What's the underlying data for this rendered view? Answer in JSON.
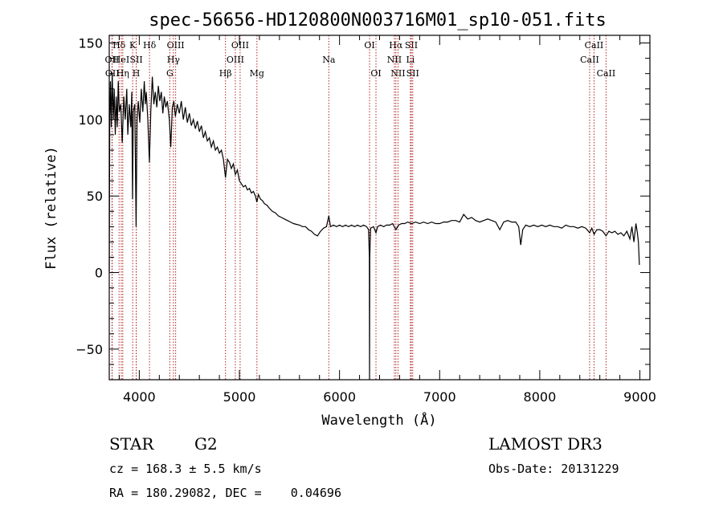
{
  "chart_data": {
    "type": "line",
    "title": "spec-56656-HD120800N003716M01_sp10-051.fits",
    "xlabel": "Wavelength (Å)",
    "ylabel": "Flux (relative)",
    "xlim": [
      3700,
      9100
    ],
    "ylim": [
      -70,
      155
    ],
    "xticks": [
      4000,
      5000,
      6000,
      7000,
      8000,
      9000
    ],
    "yticks": [
      -50,
      0,
      50,
      100,
      150
    ],
    "grid": false,
    "line_color": "#000000",
    "marker_color": "#b22222",
    "series": [
      {
        "values": [
          [
            3700,
            0
          ],
          [
            3705,
            100
          ],
          [
            3712,
            125
          ],
          [
            3720,
            95
          ],
          [
            3730,
            130
          ],
          [
            3740,
            100
          ],
          [
            3750,
            120
          ],
          [
            3760,
            90
          ],
          [
            3770,
            115
          ],
          [
            3780,
            95
          ],
          [
            3790,
            125
          ],
          [
            3800,
            105
          ],
          [
            3815,
            110
          ],
          [
            3830,
            85
          ],
          [
            3845,
            115
          ],
          [
            3860,
            100
          ],
          [
            3875,
            120
          ],
          [
            3885,
            90
          ],
          [
            3900,
            110
          ],
          [
            3915,
            95
          ],
          [
            3925,
            118
          ],
          [
            3933,
            48
          ],
          [
            3940,
            105
          ],
          [
            3955,
            110
          ],
          [
            3968,
            30
          ],
          [
            3978,
            100
          ],
          [
            3990,
            112
          ],
          [
            4005,
            98
          ],
          [
            4020,
            120
          ],
          [
            4035,
            105
          ],
          [
            4050,
            125
          ],
          [
            4060,
            110
          ],
          [
            4070,
            118
          ],
          [
            4085,
            100
          ],
          [
            4101,
            72
          ],
          [
            4115,
            105
          ],
          [
            4130,
            128
          ],
          [
            4145,
            110
          ],
          [
            4160,
            118
          ],
          [
            4175,
            108
          ],
          [
            4190,
            122
          ],
          [
            4205,
            112
          ],
          [
            4220,
            118
          ],
          [
            4235,
            104
          ],
          [
            4250,
            115
          ],
          [
            4265,
            108
          ],
          [
            4280,
            112
          ],
          [
            4300,
            100
          ],
          [
            4315,
            82
          ],
          [
            4330,
            108
          ],
          [
            4345,
            112
          ],
          [
            4360,
            102
          ],
          [
            4380,
            110
          ],
          [
            4400,
            104
          ],
          [
            4420,
            112
          ],
          [
            4440,
            100
          ],
          [
            4460,
            108
          ],
          [
            4480,
            98
          ],
          [
            4500,
            104
          ],
          [
            4520,
            96
          ],
          [
            4540,
            100
          ],
          [
            4560,
            94
          ],
          [
            4580,
            99
          ],
          [
            4600,
            92
          ],
          [
            4620,
            96
          ],
          [
            4640,
            88
          ],
          [
            4660,
            92
          ],
          [
            4680,
            86
          ],
          [
            4700,
            88
          ],
          [
            4720,
            82
          ],
          [
            4740,
            86
          ],
          [
            4760,
            80
          ],
          [
            4780,
            82
          ],
          [
            4800,
            78
          ],
          [
            4820,
            80
          ],
          [
            4840,
            74
          ],
          [
            4861,
            62
          ],
          [
            4880,
            74
          ],
          [
            4900,
            72
          ],
          [
            4920,
            68
          ],
          [
            4940,
            71
          ],
          [
            4960,
            64
          ],
          [
            4980,
            67
          ],
          [
            5000,
            60
          ],
          [
            5020,
            58
          ],
          [
            5040,
            56
          ],
          [
            5060,
            57
          ],
          [
            5080,
            54
          ],
          [
            5100,
            55
          ],
          [
            5120,
            52
          ],
          [
            5140,
            53
          ],
          [
            5160,
            50
          ],
          [
            5175,
            46
          ],
          [
            5190,
            51
          ],
          [
            5210,
            48
          ],
          [
            5230,
            47
          ],
          [
            5250,
            45
          ],
          [
            5275,
            44
          ],
          [
            5300,
            42
          ],
          [
            5330,
            40
          ],
          [
            5360,
            39
          ],
          [
            5390,
            37
          ],
          [
            5420,
            36
          ],
          [
            5450,
            35
          ],
          [
            5480,
            34
          ],
          [
            5510,
            33
          ],
          [
            5540,
            32
          ],
          [
            5570,
            31.5
          ],
          [
            5600,
            31
          ],
          [
            5630,
            30
          ],
          [
            5660,
            30
          ],
          [
            5690,
            28
          ],
          [
            5720,
            27
          ],
          [
            5750,
            25
          ],
          [
            5780,
            24
          ],
          [
            5810,
            27
          ],
          [
            5840,
            29
          ],
          [
            5870,
            30
          ],
          [
            5893,
            37
          ],
          [
            5910,
            30
          ],
          [
            5940,
            31
          ],
          [
            5970,
            30
          ],
          [
            6000,
            31
          ],
          [
            6030,
            30
          ],
          [
            6060,
            31
          ],
          [
            6090,
            30
          ],
          [
            6120,
            31
          ],
          [
            6150,
            30
          ],
          [
            6180,
            31
          ],
          [
            6210,
            30
          ],
          [
            6240,
            31
          ],
          [
            6270,
            30
          ],
          [
            6290,
            28
          ],
          [
            6298,
            10
          ],
          [
            6300,
            -70
          ],
          [
            6302,
            10
          ],
          [
            6310,
            29
          ],
          [
            6340,
            30
          ],
          [
            6364,
            26
          ],
          [
            6380,
            30
          ],
          [
            6410,
            31
          ],
          [
            6440,
            30
          ],
          [
            6470,
            31
          ],
          [
            6500,
            31
          ],
          [
            6530,
            32
          ],
          [
            6563,
            28
          ],
          [
            6590,
            31
          ],
          [
            6620,
            32
          ],
          [
            6650,
            32
          ],
          [
            6680,
            33
          ],
          [
            6720,
            32
          ],
          [
            6760,
            33
          ],
          [
            6800,
            32
          ],
          [
            6840,
            33
          ],
          [
            6880,
            32
          ],
          [
            6920,
            33
          ],
          [
            6960,
            32
          ],
          [
            7000,
            32
          ],
          [
            7040,
            33
          ],
          [
            7080,
            33
          ],
          [
            7120,
            34
          ],
          [
            7160,
            34
          ],
          [
            7200,
            33
          ],
          [
            7240,
            38
          ],
          [
            7280,
            35
          ],
          [
            7320,
            36
          ],
          [
            7360,
            34
          ],
          [
            7400,
            33
          ],
          [
            7440,
            34
          ],
          [
            7480,
            35
          ],
          [
            7520,
            34
          ],
          [
            7560,
            33
          ],
          [
            7600,
            28
          ],
          [
            7640,
            33
          ],
          [
            7680,
            34
          ],
          [
            7720,
            33
          ],
          [
            7760,
            33
          ],
          [
            7790,
            30
          ],
          [
            7810,
            18
          ],
          [
            7830,
            28
          ],
          [
            7860,
            31
          ],
          [
            7900,
            30
          ],
          [
            7940,
            31
          ],
          [
            7980,
            30
          ],
          [
            8020,
            31
          ],
          [
            8060,
            30
          ],
          [
            8100,
            31
          ],
          [
            8140,
            30
          ],
          [
            8180,
            30
          ],
          [
            8220,
            29
          ],
          [
            8260,
            31
          ],
          [
            8300,
            30
          ],
          [
            8340,
            30
          ],
          [
            8380,
            29
          ],
          [
            8420,
            30
          ],
          [
            8460,
            29
          ],
          [
            8498,
            26
          ],
          [
            8520,
            29
          ],
          [
            8542,
            25
          ],
          [
            8570,
            28
          ],
          [
            8600,
            28
          ],
          [
            8630,
            27
          ],
          [
            8662,
            24
          ],
          [
            8690,
            27
          ],
          [
            8720,
            26
          ],
          [
            8750,
            27
          ],
          [
            8780,
            25
          ],
          [
            8810,
            26
          ],
          [
            8840,
            24
          ],
          [
            8870,
            27
          ],
          [
            8900,
            22
          ],
          [
            8920,
            30
          ],
          [
            8940,
            20
          ],
          [
            8960,
            32
          ],
          [
            8975,
            26
          ],
          [
            8985,
            20
          ],
          [
            8995,
            5
          ]
        ]
      }
    ],
    "line_markers": [
      {
        "label": "Hδ",
        "x": 3798,
        "row": 0
      },
      {
        "label": "OII",
        "x": 3727,
        "row": 1
      },
      {
        "label": "OII",
        "x": 3730,
        "row": 2
      },
      {
        "label": "HeI",
        "x": 3820,
        "row": 1
      },
      {
        "label": "Hη",
        "x": 3835,
        "row": 2
      },
      {
        "label": "K",
        "x": 3934,
        "row": 0
      },
      {
        "label": "SII",
        "x": 3970,
        "row": 1
      },
      {
        "label": "H",
        "x": 3969,
        "row": 2
      },
      {
        "label": "Hδ",
        "x": 4102,
        "row": 0
      },
      {
        "label": "OIII",
        "x": 4363,
        "row": 0
      },
      {
        "label": "Hγ",
        "x": 4341,
        "row": 1
      },
      {
        "label": "G",
        "x": 4305,
        "row": 2
      },
      {
        "label": "Hβ",
        "x": 4861,
        "row": 2
      },
      {
        "label": "OIII",
        "x": 5007,
        "row": 0
      },
      {
        "label": "OIII",
        "x": 4959,
        "row": 1
      },
      {
        "label": "Mg",
        "x": 5175,
        "row": 2
      },
      {
        "label": "Na",
        "x": 5893,
        "row": 1
      },
      {
        "label": "OI",
        "x": 6300,
        "row": 0
      },
      {
        "label": "OI",
        "x": 6364,
        "row": 2
      },
      {
        "label": "Hα",
        "x": 6563,
        "row": 0
      },
      {
        "label": "NII",
        "x": 6548,
        "row": 1
      },
      {
        "label": "NII",
        "x": 6584,
        "row": 2
      },
      {
        "label": "SII",
        "x": 6717,
        "row": 0
      },
      {
        "label": "Li",
        "x": 6708,
        "row": 1
      },
      {
        "label": "SII",
        "x": 6731,
        "row": 2
      },
      {
        "label": "CaII",
        "x": 8542,
        "row": 0
      },
      {
        "label": "CaII",
        "x": 8498,
        "row": 1
      },
      {
        "label": "CaII",
        "x": 8662,
        "row": 2
      }
    ]
  },
  "info": {
    "object_class": "STAR",
    "subclass": "G2",
    "survey": "LAMOST DR3",
    "cz": "cz = 168.3 ± 5.5 km/s",
    "obs_date": "Obs-Date: 20131229",
    "coords": "RA = 180.29082, DEC =    0.04696"
  }
}
